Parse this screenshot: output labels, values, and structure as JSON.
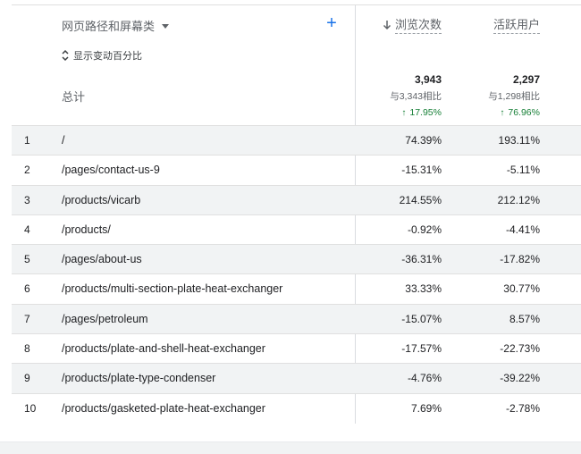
{
  "header": {
    "dimension_label": "网页路径和屏幕类",
    "add_icon": "plus-icon",
    "toggle_label": "显示变动百分比",
    "total_label": "总计",
    "metrics": [
      {
        "label": "浏览次数",
        "sort_icon": "arrow-down-icon"
      },
      {
        "label": "活跃用户"
      }
    ]
  },
  "totals": [
    {
      "value": "3,943",
      "comparison": "与3,343相比",
      "change": "17.95%",
      "change_color": "#188038"
    },
    {
      "value": "2,297",
      "comparison": "与1,298相比",
      "change": "76.96%",
      "change_color": "#188038"
    }
  ],
  "rows": [
    {
      "index": "1",
      "path": "/",
      "views": "74.39%",
      "users": "193.11%"
    },
    {
      "index": "2",
      "path": "/pages/contact-us-9",
      "views": "-15.31%",
      "users": "-5.11%"
    },
    {
      "index": "3",
      "path": "/products/vicarb",
      "views": "214.55%",
      "users": "212.12%"
    },
    {
      "index": "4",
      "path": "/products/",
      "views": "-0.92%",
      "users": "-4.41%"
    },
    {
      "index": "5",
      "path": "/pages/about-us",
      "views": "-36.31%",
      "users": "-17.82%"
    },
    {
      "index": "6",
      "path": "/products/multi-section-plate-heat-exchanger",
      "views": "33.33%",
      "users": "30.77%"
    },
    {
      "index": "7",
      "path": "/pages/petroleum",
      "views": "-15.07%",
      "users": "8.57%"
    },
    {
      "index": "8",
      "path": "/products/plate-and-shell-heat-exchanger",
      "views": "-17.57%",
      "users": "-22.73%"
    },
    {
      "index": "9",
      "path": "/products/plate-type-condenser",
      "views": "-4.76%",
      "users": "-39.22%"
    },
    {
      "index": "10",
      "path": "/products/gasketed-plate-heat-exchanger",
      "views": "7.69%",
      "users": "-2.78%"
    }
  ]
}
